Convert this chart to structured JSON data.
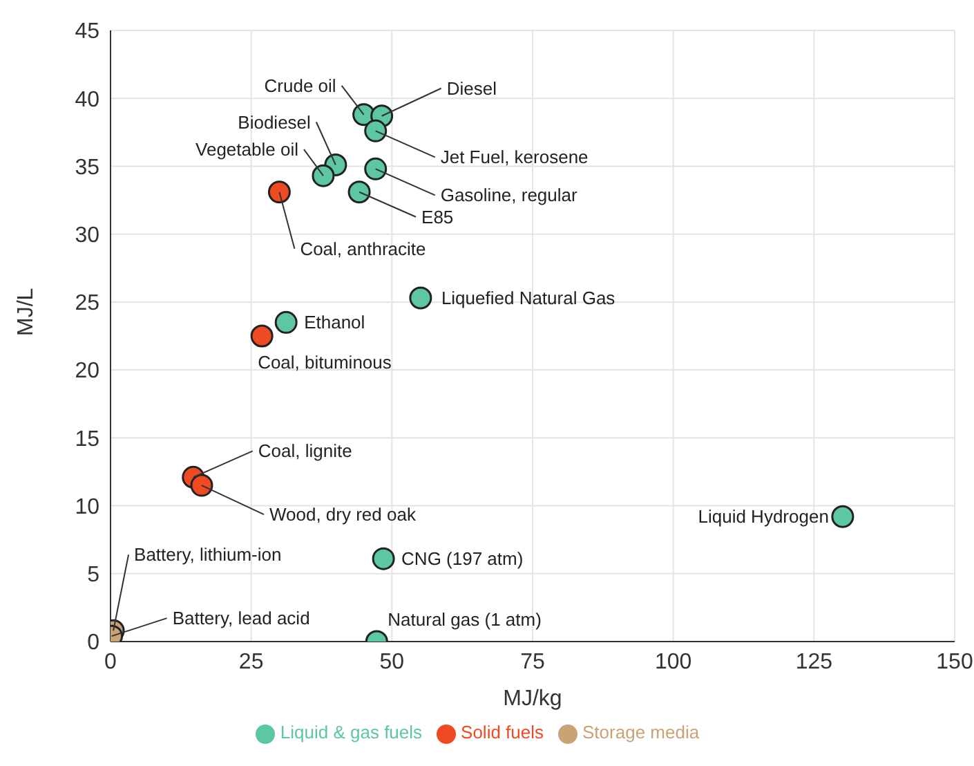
{
  "chart_data": {
    "type": "scatter",
    "xlabel": "MJ/kg",
    "ylabel": "MJ/L",
    "xlim": [
      0,
      150
    ],
    "xticks": [
      0,
      25,
      50,
      75,
      100,
      125,
      150
    ],
    "ylim": [
      0,
      45
    ],
    "yticks": [
      0,
      5,
      10,
      15,
      20,
      25,
      30,
      35,
      40,
      45
    ],
    "grid": true,
    "legend": "bottom",
    "marker": "circle",
    "series": [
      {
        "name": "Solid fuels",
        "color": "#f04a23",
        "x": [
          30.0,
          26.9,
          14.7,
          16.2
        ],
        "values": [
          33.1,
          22.5,
          12.1,
          11.5
        ]
      },
      {
        "name": "Liquid & gas fuels",
        "color": "#5cc6a5",
        "x": [
          45.0,
          48.2,
          47.1,
          40.0,
          37.8,
          47.1,
          44.2,
          55.1,
          31.2,
          130.1,
          48.5,
          47.3
        ],
        "values": [
          38.8,
          38.7,
          37.6,
          35.1,
          34.3,
          34.8,
          33.1,
          25.3,
          23.5,
          9.2,
          6.1,
          0
        ]
      },
      {
        "name": "Storage media",
        "color": "#c9a275",
        "x": [
          0.5,
          0.2
        ],
        "values": [
          0.8,
          0.4
        ]
      }
    ],
    "annotations": [
      {
        "text": "Crude oil",
        "x": 45.0,
        "y": 38.8
      },
      {
        "text": "Diesel",
        "x": 48.2,
        "y": 38.7
      },
      {
        "text": "Jet Fuel, kerosene",
        "x": 47.1,
        "y": 37.6
      },
      {
        "text": "Biodiesel",
        "x": 40.0,
        "y": 35.1
      },
      {
        "text": "Vegetable oil",
        "x": 37.8,
        "y": 34.3
      },
      {
        "text": "Gasoline, regular",
        "x": 47.1,
        "y": 34.8
      },
      {
        "text": "E85",
        "x": 44.2,
        "y": 33.1
      },
      {
        "text": "Coal, anthracite",
        "x": 30.0,
        "y": 33.1
      },
      {
        "text": "Liquefied Natural Gas",
        "x": 55.1,
        "y": 25.3
      },
      {
        "text": "Ethanol",
        "x": 31.2,
        "y": 23.5
      },
      {
        "text": "Coal, bituminous",
        "x": 26.9,
        "y": 22.5
      },
      {
        "text": "Coal, lignite",
        "x": 14.7,
        "y": 12.1
      },
      {
        "text": "Wood, dry red oak",
        "x": 16.2,
        "y": 11.5
      },
      {
        "text": "Liquid Hydrogen",
        "x": 130.1,
        "y": 9.2
      },
      {
        "text": "CNG (197 atm)",
        "x": 48.5,
        "y": 6.1
      },
      {
        "text": "Natural gas (1 atm)",
        "x": 47.3,
        "y": 0
      },
      {
        "text": "Battery, lithium-ion",
        "x": 0.5,
        "y": 0.8
      },
      {
        "text": "Battery, lead acid",
        "x": 0.2,
        "y": 0.4
      }
    ]
  }
}
